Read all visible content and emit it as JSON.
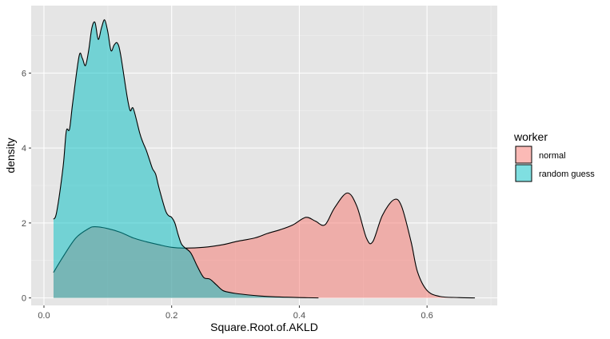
{
  "chart_data": {
    "type": "area",
    "subtype": "density",
    "title": "",
    "xlabel": "Square.Root.of.AKLD",
    "ylabel": "density",
    "xlim": [
      -0.02,
      0.71
    ],
    "ylim": [
      -0.2,
      7.8
    ],
    "x_ticks": [
      0.0,
      0.2,
      0.4,
      0.6
    ],
    "x_tick_labels": [
      "0.0",
      "0.2",
      "0.4",
      "0.6"
    ],
    "y_ticks": [
      0,
      2,
      4,
      6
    ],
    "y_tick_labels": [
      "0",
      "2",
      "4",
      "6"
    ],
    "grid": true,
    "background": "#e5e5e5",
    "legend": {
      "title": "worker",
      "placement": "right",
      "entries": [
        "normal",
        "random guess"
      ]
    },
    "series": [
      {
        "name": "normal",
        "color": "#f8766d",
        "points": [
          [
            0.015,
            0.68
          ],
          [
            0.03,
            1.1
          ],
          [
            0.05,
            1.6
          ],
          [
            0.07,
            1.85
          ],
          [
            0.08,
            1.9
          ],
          [
            0.1,
            1.85
          ],
          [
            0.12,
            1.75
          ],
          [
            0.14,
            1.6
          ],
          [
            0.16,
            1.5
          ],
          [
            0.18,
            1.42
          ],
          [
            0.2,
            1.35
          ],
          [
            0.22,
            1.33
          ],
          [
            0.25,
            1.35
          ],
          [
            0.28,
            1.42
          ],
          [
            0.3,
            1.5
          ],
          [
            0.33,
            1.6
          ],
          [
            0.35,
            1.72
          ],
          [
            0.37,
            1.82
          ],
          [
            0.39,
            1.95
          ],
          [
            0.41,
            2.15
          ],
          [
            0.425,
            2.05
          ],
          [
            0.44,
            1.95
          ],
          [
            0.455,
            2.4
          ],
          [
            0.475,
            2.8
          ],
          [
            0.49,
            2.45
          ],
          [
            0.505,
            1.6
          ],
          [
            0.515,
            1.5
          ],
          [
            0.53,
            2.2
          ],
          [
            0.548,
            2.62
          ],
          [
            0.56,
            2.45
          ],
          [
            0.575,
            1.5
          ],
          [
            0.585,
            0.7
          ],
          [
            0.6,
            0.2
          ],
          [
            0.62,
            0.04
          ],
          [
            0.65,
            0.01
          ],
          [
            0.675,
            0.0
          ]
        ]
      },
      {
        "name": "random guess",
        "color": "#00bfc4",
        "points": [
          [
            0.015,
            2.1
          ],
          [
            0.02,
            2.3
          ],
          [
            0.03,
            3.5
          ],
          [
            0.035,
            4.45
          ],
          [
            0.04,
            4.5
          ],
          [
            0.045,
            5.2
          ],
          [
            0.055,
            6.45
          ],
          [
            0.06,
            6.4
          ],
          [
            0.065,
            6.2
          ],
          [
            0.07,
            6.6
          ],
          [
            0.075,
            7.2
          ],
          [
            0.08,
            7.35
          ],
          [
            0.085,
            6.9
          ],
          [
            0.09,
            7.2
          ],
          [
            0.095,
            7.42
          ],
          [
            0.1,
            7.1
          ],
          [
            0.105,
            6.6
          ],
          [
            0.11,
            6.75
          ],
          [
            0.115,
            6.8
          ],
          [
            0.12,
            6.5
          ],
          [
            0.13,
            5.4
          ],
          [
            0.135,
            5.0
          ],
          [
            0.14,
            5.05
          ],
          [
            0.15,
            4.4
          ],
          [
            0.155,
            4.15
          ],
          [
            0.16,
            3.95
          ],
          [
            0.165,
            3.7
          ],
          [
            0.17,
            3.45
          ],
          [
            0.175,
            3.3
          ],
          [
            0.18,
            2.95
          ],
          [
            0.19,
            2.35
          ],
          [
            0.195,
            2.2
          ],
          [
            0.2,
            2.15
          ],
          [
            0.205,
            2.0
          ],
          [
            0.21,
            1.7
          ],
          [
            0.215,
            1.45
          ],
          [
            0.22,
            1.35
          ],
          [
            0.23,
            1.2
          ],
          [
            0.24,
            0.85
          ],
          [
            0.25,
            0.55
          ],
          [
            0.26,
            0.5
          ],
          [
            0.27,
            0.35
          ],
          [
            0.28,
            0.2
          ],
          [
            0.29,
            0.15
          ],
          [
            0.3,
            0.12
          ],
          [
            0.32,
            0.08
          ],
          [
            0.34,
            0.05
          ],
          [
            0.36,
            0.03
          ],
          [
            0.38,
            0.02
          ],
          [
            0.4,
            0.01
          ],
          [
            0.43,
            0.0
          ]
        ]
      }
    ]
  }
}
